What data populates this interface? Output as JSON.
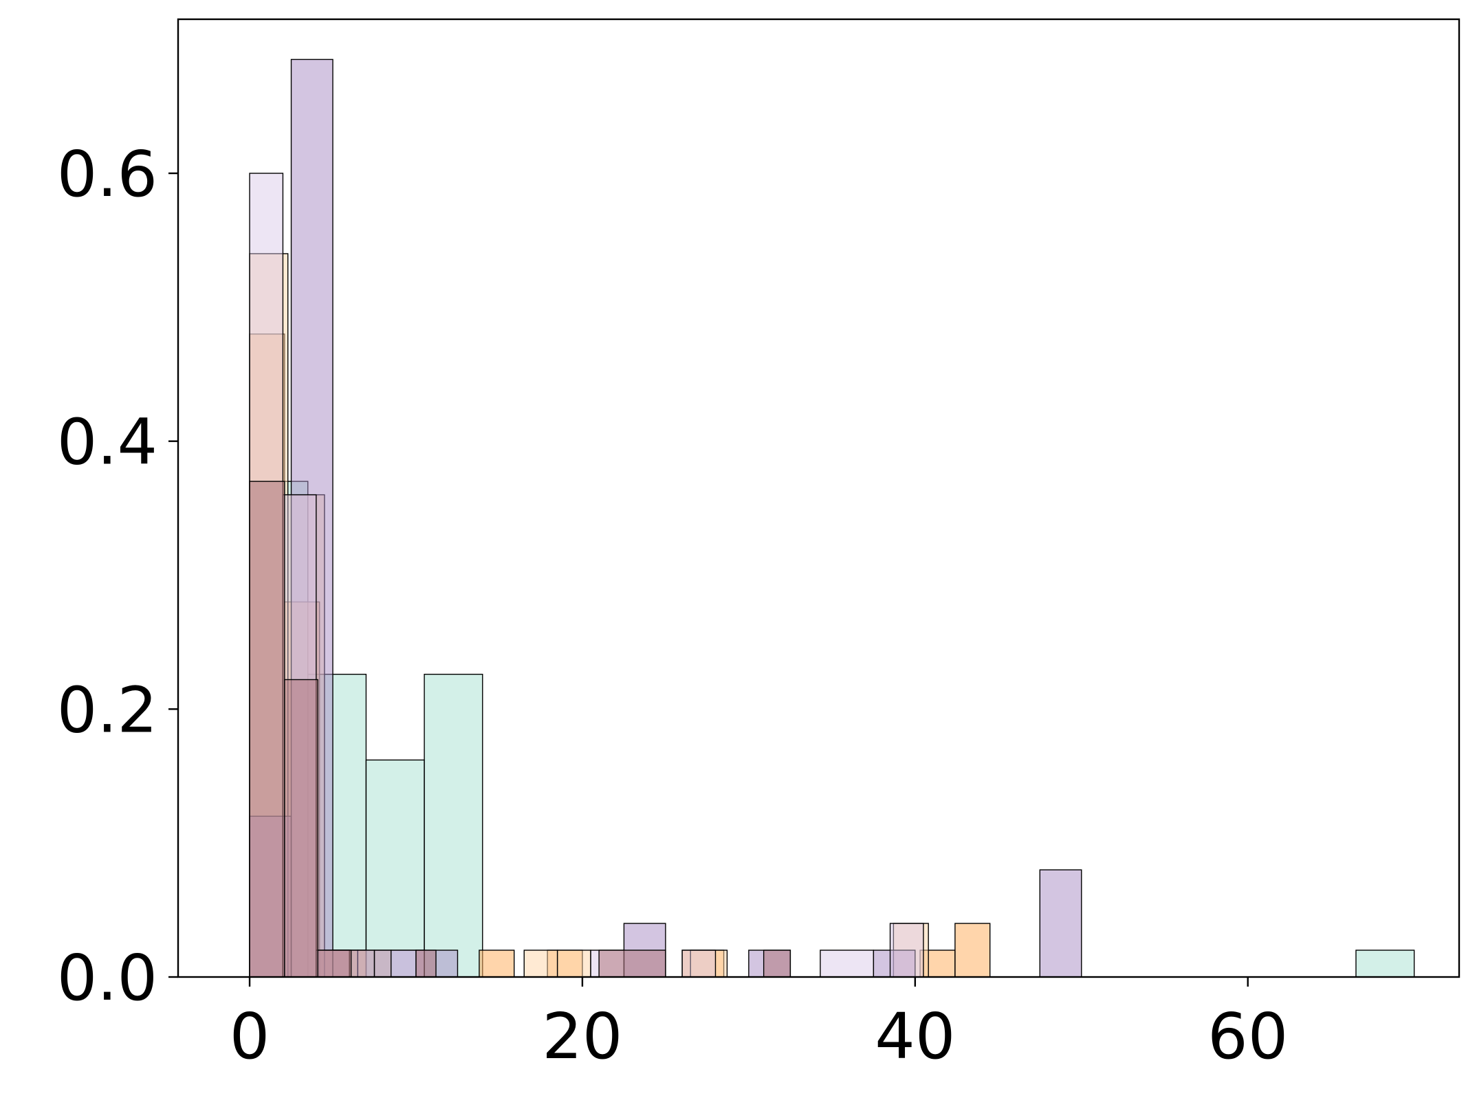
{
  "chart_data": {
    "type": "histogram",
    "title": "",
    "xlabel": "",
    "ylabel": "",
    "xlim": [
      -4.3,
      72.7
    ],
    "ylim": [
      0,
      0.715
    ],
    "grid": false,
    "legend": "none",
    "x_ticks": [
      {
        "value": 0,
        "label": "0"
      },
      {
        "value": 20,
        "label": "20"
      },
      {
        "value": 40,
        "label": "40"
      },
      {
        "value": 60,
        "label": "60"
      }
    ],
    "y_ticks": [
      {
        "value": 0.0,
        "label": "0.0"
      },
      {
        "value": 0.2,
        "label": "0.2"
      },
      {
        "value": 0.4,
        "label": "0.4"
      },
      {
        "value": 0.6,
        "label": "0.6"
      }
    ],
    "series": [
      {
        "color": "#a8e1d2",
        "opacity": 0.5,
        "bins": [
          {
            "x0": 0.0,
            "x1": 3.5,
            "y": 0.37
          },
          {
            "x0": 3.5,
            "x1": 7.0,
            "y": 0.226
          },
          {
            "x0": 7.0,
            "x1": 10.5,
            "y": 0.162
          },
          {
            "x0": 10.5,
            "x1": 14.0,
            "y": 0.226
          },
          {
            "x0": 66.5,
            "x1": 70.0,
            "y": 0.02
          }
        ]
      },
      {
        "color": "#ffb266",
        "opacity": 0.55,
        "bins": [
          {
            "x0": 0.0,
            "x1": 2.1,
            "y": 0.48
          },
          {
            "x0": 2.1,
            "x1": 4.2,
            "y": 0.28
          },
          {
            "x0": 4.2,
            "x1": 5.0,
            "y": 0.02
          },
          {
            "x0": 5.0,
            "x1": 7.0,
            "y": 0.02
          },
          {
            "x0": 13.8,
            "x1": 15.9,
            "y": 0.02
          },
          {
            "x0": 17.9,
            "x1": 20.0,
            "y": 0.02
          },
          {
            "x0": 26.0,
            "x1": 28.5,
            "y": 0.02
          },
          {
            "x0": 40.3,
            "x1": 42.4,
            "y": 0.02
          },
          {
            "x0": 42.4,
            "x1": 44.5,
            "y": 0.04
          }
        ]
      },
      {
        "color": "#ffd6a8",
        "opacity": 0.5,
        "bins": [
          {
            "x0": 0.0,
            "x1": 2.3,
            "y": 0.54
          },
          {
            "x0": 2.3,
            "x1": 4.5,
            "y": 0.36
          },
          {
            "x0": 4.5,
            "x1": 6.5,
            "y": 0.02
          },
          {
            "x0": 6.5,
            "x1": 8.5,
            "y": 0.02
          },
          {
            "x0": 16.5,
            "x1": 18.5,
            "y": 0.02
          },
          {
            "x0": 18.5,
            "x1": 20.5,
            "y": 0.02
          },
          {
            "x0": 26.5,
            "x1": 28.7,
            "y": 0.02
          },
          {
            "x0": 38.7,
            "x1": 40.8,
            "y": 0.04
          }
        ]
      },
      {
        "color": "#a88bc3",
        "opacity": 0.5,
        "bins": [
          {
            "x0": 0.0,
            "x1": 2.5,
            "y": 0.12
          },
          {
            "x0": 2.5,
            "x1": 5.0,
            "y": 0.685
          },
          {
            "x0": 5.0,
            "x1": 7.5,
            "y": 0.02
          },
          {
            "x0": 7.5,
            "x1": 10.0,
            "y": 0.02
          },
          {
            "x0": 10.0,
            "x1": 12.5,
            "y": 0.02
          },
          {
            "x0": 22.5,
            "x1": 25.0,
            "y": 0.04
          },
          {
            "x0": 30.0,
            "x1": 32.5,
            "y": 0.02
          },
          {
            "x0": 37.5,
            "x1": 40.0,
            "y": 0.02
          },
          {
            "x0": 47.5,
            "x1": 50.0,
            "y": 0.08
          }
        ]
      },
      {
        "color": "#d7c6e6",
        "opacity": 0.45,
        "bins": [
          {
            "x0": 0.0,
            "x1": 2.0,
            "y": 0.6
          },
          {
            "x0": 2.0,
            "x1": 4.0,
            "y": 0.36
          },
          {
            "x0": 4.0,
            "x1": 6.0,
            "y": 0.02
          },
          {
            "x0": 8.5,
            "x1": 10.5,
            "y": 0.02
          },
          {
            "x0": 20.5,
            "x1": 22.5,
            "y": 0.02
          },
          {
            "x0": 26.0,
            "x1": 28.0,
            "y": 0.02
          },
          {
            "x0": 34.3,
            "x1": 37.5,
            "y": 0.02
          },
          {
            "x0": 38.5,
            "x1": 40.5,
            "y": 0.04
          }
        ]
      },
      {
        "color": "#b0787f",
        "opacity": 0.55,
        "bins": [
          {
            "x0": 0.0,
            "x1": 2.1,
            "y": 0.37
          },
          {
            "x0": 2.1,
            "x1": 4.1,
            "y": 0.222
          },
          {
            "x0": 4.1,
            "x1": 6.1,
            "y": 0.02
          },
          {
            "x0": 10.0,
            "x1": 11.2,
            "y": 0.02
          },
          {
            "x0": 21.0,
            "x1": 25.0,
            "y": 0.02
          },
          {
            "x0": 30.9,
            "x1": 32.5,
            "y": 0.02
          }
        ]
      }
    ]
  }
}
